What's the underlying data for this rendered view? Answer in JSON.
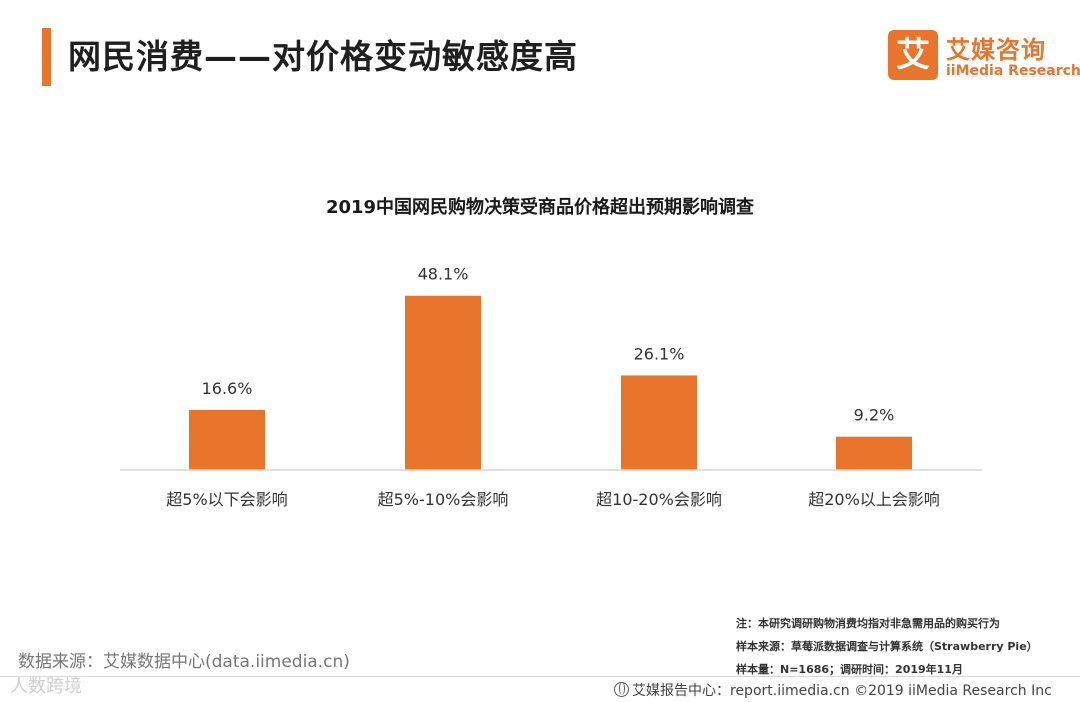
{
  "header": {
    "title": "网民消费——对价格变动敏感度高"
  },
  "logo": {
    "mark": "艾",
    "cn": "艾媒咨询",
    "en": "iiMedia Research"
  },
  "chart_data": {
    "type": "bar",
    "title": "2019中国网民购物决策受商品价格超出预期影响调查",
    "categories": [
      "超5%以下会影响",
      "超5%-10%会影响",
      "超10-20%会影响",
      "超20%以上会影响"
    ],
    "values": [
      16.6,
      48.1,
      26.1,
      9.2
    ],
    "value_labels": [
      "16.6%",
      "48.1%",
      "26.1%",
      "9.2%"
    ],
    "ylim": [
      0,
      60
    ],
    "bar_color": "#e9742b",
    "grid": false
  },
  "notes": {
    "line1": "注：本研究调研购物消费均指对非急需用品的购买行为",
    "line2": "样本来源：草莓派数据调查与计算系统（Strawberry Pie）",
    "line3": "样本量：N=1686；调研时间：2019年11月"
  },
  "source": "数据来源：艾媒数据中心(data.iimedia.cn)",
  "watermark": "人数跨境",
  "footer": "艾媒报告中心：report.iimedia.cn  ©2019  iiMedia Research  Inc",
  "colors": {
    "accent": "#e9742b"
  }
}
